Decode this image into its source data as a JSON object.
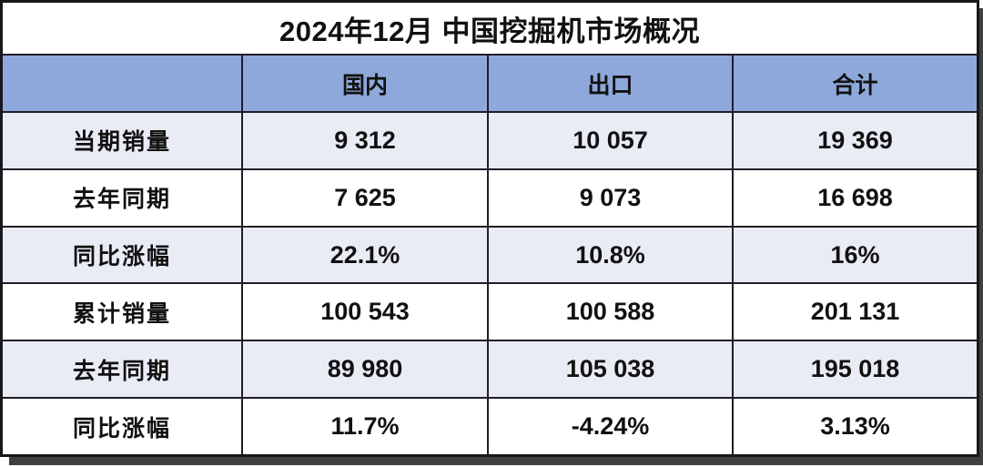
{
  "title": "2024年12月 中国挖掘机市场概况",
  "table": {
    "column_headers": [
      "",
      "国内",
      "出口",
      "合计"
    ],
    "rows": [
      {
        "label": "当期销量",
        "values": [
          "9 312",
          "10 057",
          "19 369"
        ]
      },
      {
        "label": "去年同期",
        "values": [
          "7 625",
          "9 073",
          "16 698"
        ]
      },
      {
        "label": "同比涨幅",
        "values": [
          "22.1%",
          "10.8%",
          "16%"
        ]
      },
      {
        "label": "累计销量",
        "values": [
          "100 543",
          "100 588",
          "201 131"
        ]
      },
      {
        "label": "去年同期",
        "values": [
          "89 980",
          "105 038",
          "195 018"
        ]
      },
      {
        "label": "同比涨幅",
        "values": [
          "11.7%",
          "-4.24%",
          "3.13%"
        ]
      }
    ]
  },
  "chart_data": {
    "type": "table",
    "title": "2024年12月 中国挖掘机市场概况",
    "columns": [
      "国内",
      "出口",
      "合计"
    ],
    "row_labels": [
      "当期销量",
      "去年同期",
      "同比涨幅",
      "累计销量",
      "去年同期",
      "同比涨幅"
    ],
    "rows": [
      [
        "9 312",
        "10 057",
        "19 369"
      ],
      [
        "7 625",
        "9 073",
        "16 698"
      ],
      [
        "22.1%",
        "10.8%",
        "16%"
      ],
      [
        "100 543",
        "100 588",
        "201 131"
      ],
      [
        "89 980",
        "105 038",
        "195 018"
      ],
      [
        "11.7%",
        "-4.24%",
        "3.13%"
      ]
    ]
  },
  "colors": {
    "header_bg": "#8EA8DB",
    "band_row_bg": "#E9EBF5",
    "white_row_bg": "#FFFFFF",
    "grid_line": "#1E1E26",
    "outer_border": "#17171C",
    "shadow": "#3F3F3F",
    "text": "#111111"
  }
}
